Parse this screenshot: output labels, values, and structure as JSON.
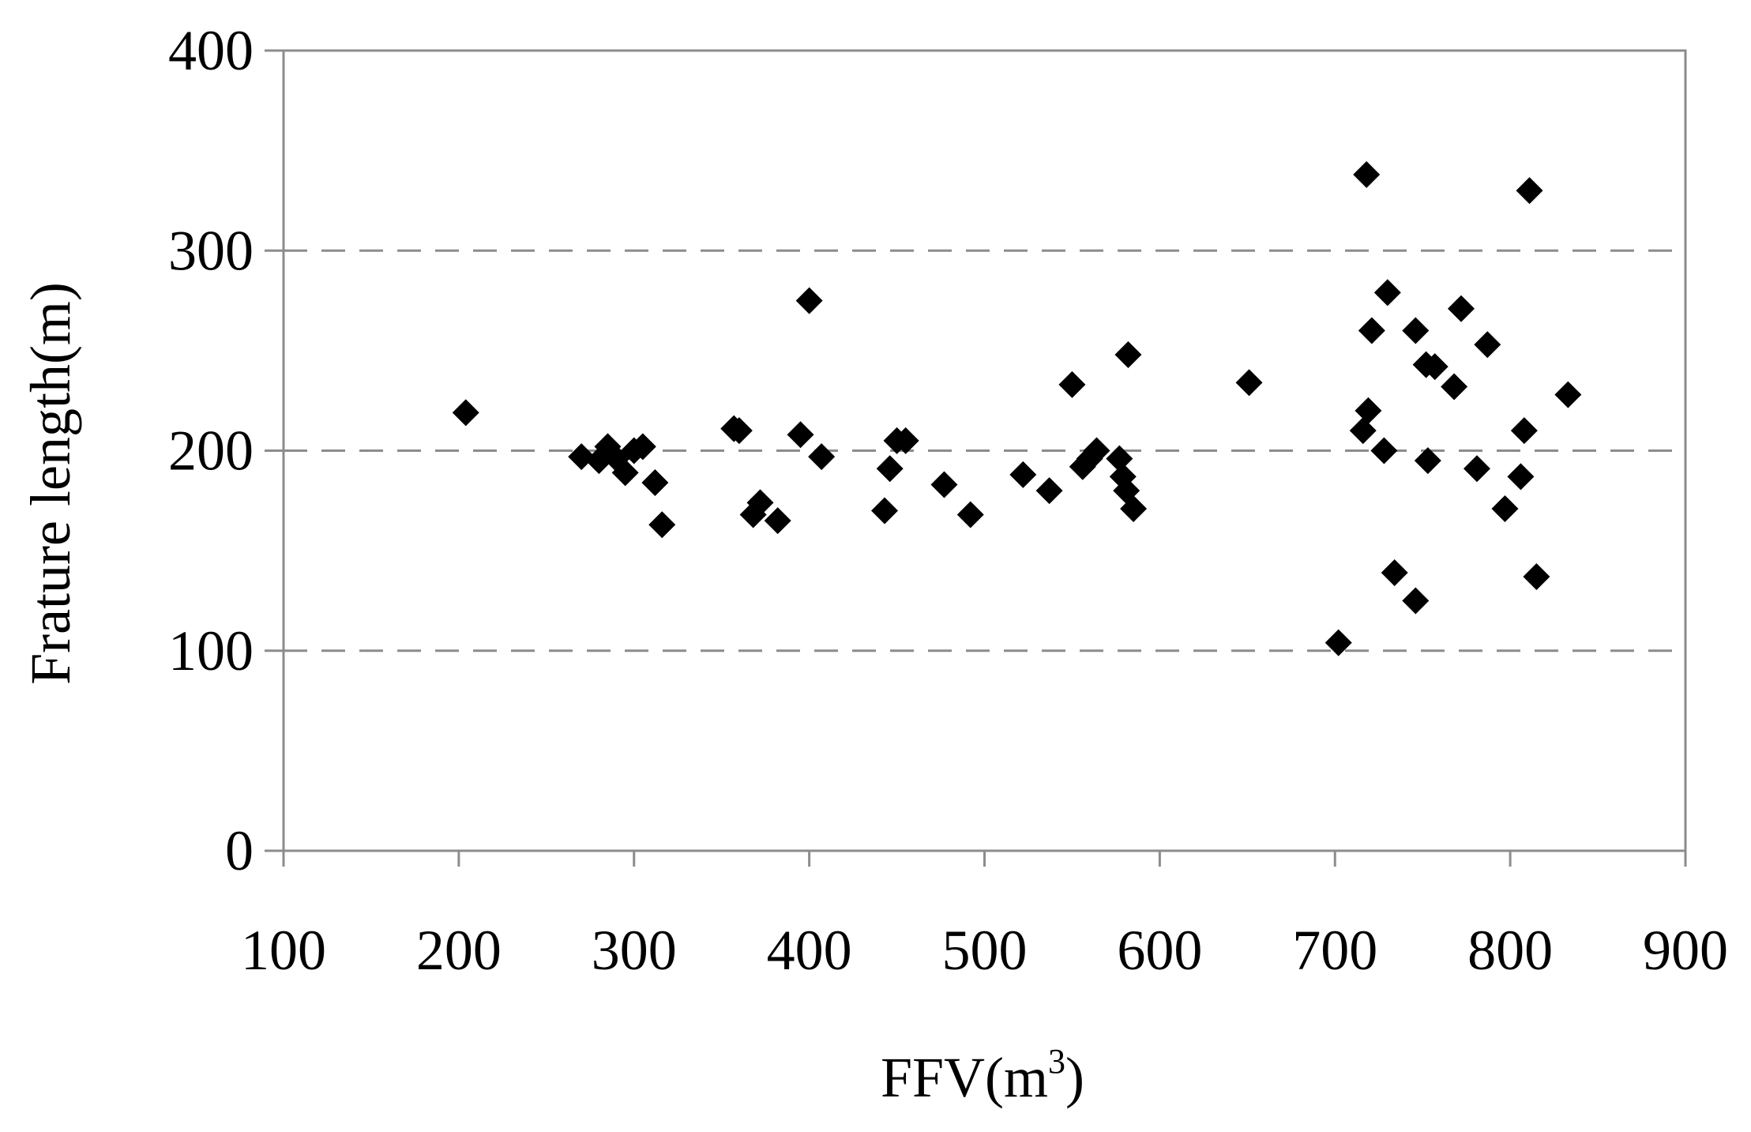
{
  "chart_data": {
    "type": "scatter",
    "xlabel_main": "FFV(m",
    "xlabel_sup": "3",
    "xlabel_end": ")",
    "ylabel": "Frature length(m)",
    "xlim": [
      100,
      900
    ],
    "ylim": [
      0,
      400
    ],
    "x_ticks": [
      100,
      200,
      300,
      400,
      500,
      600,
      700,
      800,
      900
    ],
    "y_ticks": [
      0,
      100,
      200,
      300,
      400
    ],
    "gridlines": "horizontal dashed at 100, 200, 300",
    "marker": "diamond",
    "colors": {
      "marker": "#000000",
      "axis": "#8c8c8c",
      "grid": "#8c8c8c"
    },
    "points": [
      [
        204,
        219
      ],
      [
        270,
        197
      ],
      [
        280,
        195
      ],
      [
        285,
        202
      ],
      [
        290,
        196
      ],
      [
        295,
        189
      ],
      [
        300,
        200
      ],
      [
        305,
        202
      ],
      [
        312,
        184
      ],
      [
        316,
        163
      ],
      [
        357,
        211
      ],
      [
        360,
        210
      ],
      [
        368,
        168
      ],
      [
        372,
        174
      ],
      [
        382,
        165
      ],
      [
        395,
        208
      ],
      [
        400,
        275
      ],
      [
        407,
        197
      ],
      [
        443,
        170
      ],
      [
        446,
        191
      ],
      [
        450,
        205
      ],
      [
        455,
        205
      ],
      [
        477,
        183
      ],
      [
        492,
        168
      ],
      [
        522,
        188
      ],
      [
        537,
        180
      ],
      [
        550,
        233
      ],
      [
        556,
        192
      ],
      [
        560,
        196
      ],
      [
        564,
        200
      ],
      [
        577,
        196
      ],
      [
        579,
        187
      ],
      [
        581,
        180
      ],
      [
        582,
        248
      ],
      [
        585,
        171
      ],
      [
        651,
        234
      ],
      [
        702,
        104
      ],
      [
        716,
        210
      ],
      [
        718,
        338
      ],
      [
        719,
        220
      ],
      [
        721,
        260
      ],
      [
        728,
        200
      ],
      [
        730,
        279
      ],
      [
        734,
        139
      ],
      [
        746,
        125
      ],
      [
        746,
        260
      ],
      [
        752,
        243
      ],
      [
        753,
        195
      ],
      [
        757,
        242
      ],
      [
        768,
        232
      ],
      [
        772,
        271
      ],
      [
        781,
        191
      ],
      [
        787,
        253
      ],
      [
        797,
        171
      ],
      [
        806,
        187
      ],
      [
        808,
        210
      ],
      [
        811,
        330
      ],
      [
        815,
        137
      ],
      [
        833,
        228
      ]
    ]
  }
}
